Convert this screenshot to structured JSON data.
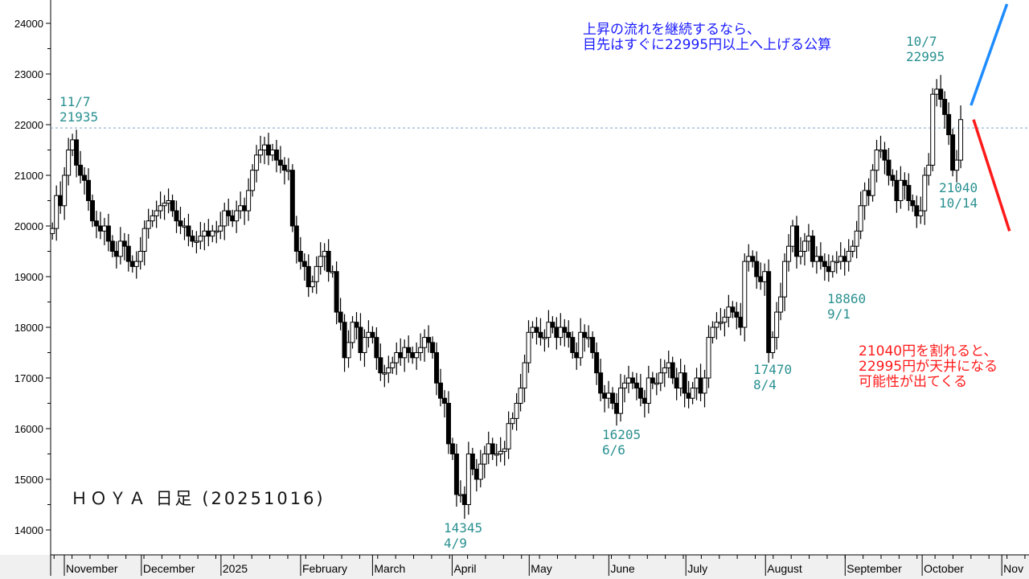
{
  "chart_data": {
    "type": "candlestick",
    "title": "ＨＯＹＡ 日足 (20251016)",
    "ylim": [
      13500,
      24500
    ],
    "y_ticks": [
      14000,
      15000,
      16000,
      17000,
      18000,
      19000,
      20000,
      21000,
      22000,
      23000,
      24000
    ],
    "x_range": [
      "2024-10-28",
      "2025-11-20"
    ],
    "first_candle_date": "2024-10-28",
    "last_candle_date": "2025-10-16",
    "x_ticks": [
      {
        "label": "November",
        "date": "2024-11-01"
      },
      {
        "label": "December",
        "date": "2024-12-01"
      },
      {
        "label": "2025",
        "date": "2025-01-01"
      },
      {
        "label": "February",
        "date": "2025-02-01"
      },
      {
        "label": "March",
        "date": "2025-03-01"
      },
      {
        "label": "April",
        "date": "2025-04-01"
      },
      {
        "label": "May",
        "date": "2025-05-01"
      },
      {
        "label": "June",
        "date": "2025-06-01"
      },
      {
        "label": "July",
        "date": "2025-07-01"
      },
      {
        "label": "August",
        "date": "2025-08-01"
      },
      {
        "label": "September",
        "date": "2025-09-01"
      },
      {
        "label": "October",
        "date": "2025-10-01"
      },
      {
        "label": "Nov",
        "date": "2025-11-01"
      }
    ],
    "close": [
      19950,
      20600,
      20400,
      21000,
      21500,
      21700,
      21200,
      21000,
      20900,
      20500,
      20100,
      20000,
      19900,
      20000,
      19700,
      19500,
      19400,
      19700,
      19600,
      19300,
      19200,
      19300,
      19500,
      19950,
      20100,
      20200,
      20300,
      20400,
      20450,
      20500,
      20300,
      20100,
      20000,
      20000,
      19800,
      19700,
      19700,
      19800,
      19900,
      19800,
      19900,
      19900,
      20000,
      20300,
      20200,
      20100,
      20300,
      20400,
      20300,
      20700,
      21100,
      21400,
      21500,
      21600,
      21400,
      21500,
      21300,
      21200,
      21100,
      21100,
      20000,
      19500,
      19300,
      19200,
      18800,
      18900,
      19200,
      19400,
      19500,
      19100,
      19100,
      18300,
      18100,
      17400,
      17700,
      18100,
      18000,
      17500,
      17800,
      17900,
      17800,
      17400,
      17100,
      17100,
      17200,
      17300,
      17500,
      17400,
      17600,
      17500,
      17400,
      17500,
      17600,
      17800,
      17700,
      17500,
      16900,
      16600,
      16500,
      15700,
      15500,
      14700,
      14700,
      14500,
      15500,
      15200,
      15000,
      15300,
      15500,
      15700,
      15500,
      15500,
      15550,
      15600,
      16100,
      16200,
      16500,
      16800,
      17300,
      17900,
      18000,
      17900,
      17800,
      17800,
      18100,
      18000,
      17800,
      18000,
      17900,
      17800,
      17500,
      17400,
      17900,
      17800,
      17800,
      17500,
      17100,
      16700,
      16600,
      16700,
      16500,
      16300,
      16800,
      16900,
      17000,
      16900,
      16800,
      16600,
      16500,
      17000,
      16900,
      16900,
      17100,
      17200,
      17300,
      17000,
      16800,
      17100,
      16700,
      16600,
      16800,
      17000,
      16700,
      17000,
      17800,
      18000,
      18100,
      18100,
      18200,
      18400,
      18300,
      18200,
      18000,
      19300,
      19400,
      19300,
      19000,
      18900,
      19100,
      17500,
      17800,
      18300,
      18600,
      19300,
      19600,
      20000,
      19400,
      19500,
      19700,
      19800,
      19300,
      19400,
      19300,
      19200,
      19100,
      19300,
      19300,
      19400,
      19300,
      19500,
      19600,
      19900,
      20400,
      20700,
      20600,
      21100,
      21500,
      21500,
      21300,
      21000,
      20900,
      20500,
      20900,
      20800,
      20500,
      20400,
      20200,
      20300,
      21000,
      21200,
      22600,
      22700,
      22500,
      22200,
      21800,
      21100,
      21300,
      22100
    ],
    "reference_line": {
      "value": 21935,
      "style": "dashed"
    },
    "annotations": [
      {
        "date": "11/7",
        "price": "21935"
      },
      {
        "date": "4/9",
        "price": "14345"
      },
      {
        "date": "6/6",
        "price": "16205"
      },
      {
        "date": "8/4",
        "price": "17470"
      },
      {
        "date": "9/1",
        "price": "18860"
      },
      {
        "date": "10/7",
        "price": "22995"
      },
      {
        "date": "10/14",
        "price": "21040"
      }
    ],
    "scenario_lines": [
      {
        "color": "#1e8cff",
        "from": {
          "date": "2025-10-20",
          "price": 22380
        },
        "to": {
          "date": "2025-11-03",
          "price": 24380
        }
      },
      {
        "color": "#ff1a1a",
        "from": {
          "date": "2025-10-21",
          "price": 22100
        },
        "to": {
          "date": "2025-11-04",
          "price": 19900
        }
      }
    ],
    "colors": {
      "up": "#ffffff",
      "down": "#000000",
      "reference": "#7fa3c8",
      "label": "#2a9090"
    }
  },
  "notes": {
    "blue": "上昇の流れを継続するなら、\n目先はすぐに22995円以上へ上げる公算",
    "red": "21040円を割れると、\n22995円が天井になる\n可能性が出てくる"
  }
}
